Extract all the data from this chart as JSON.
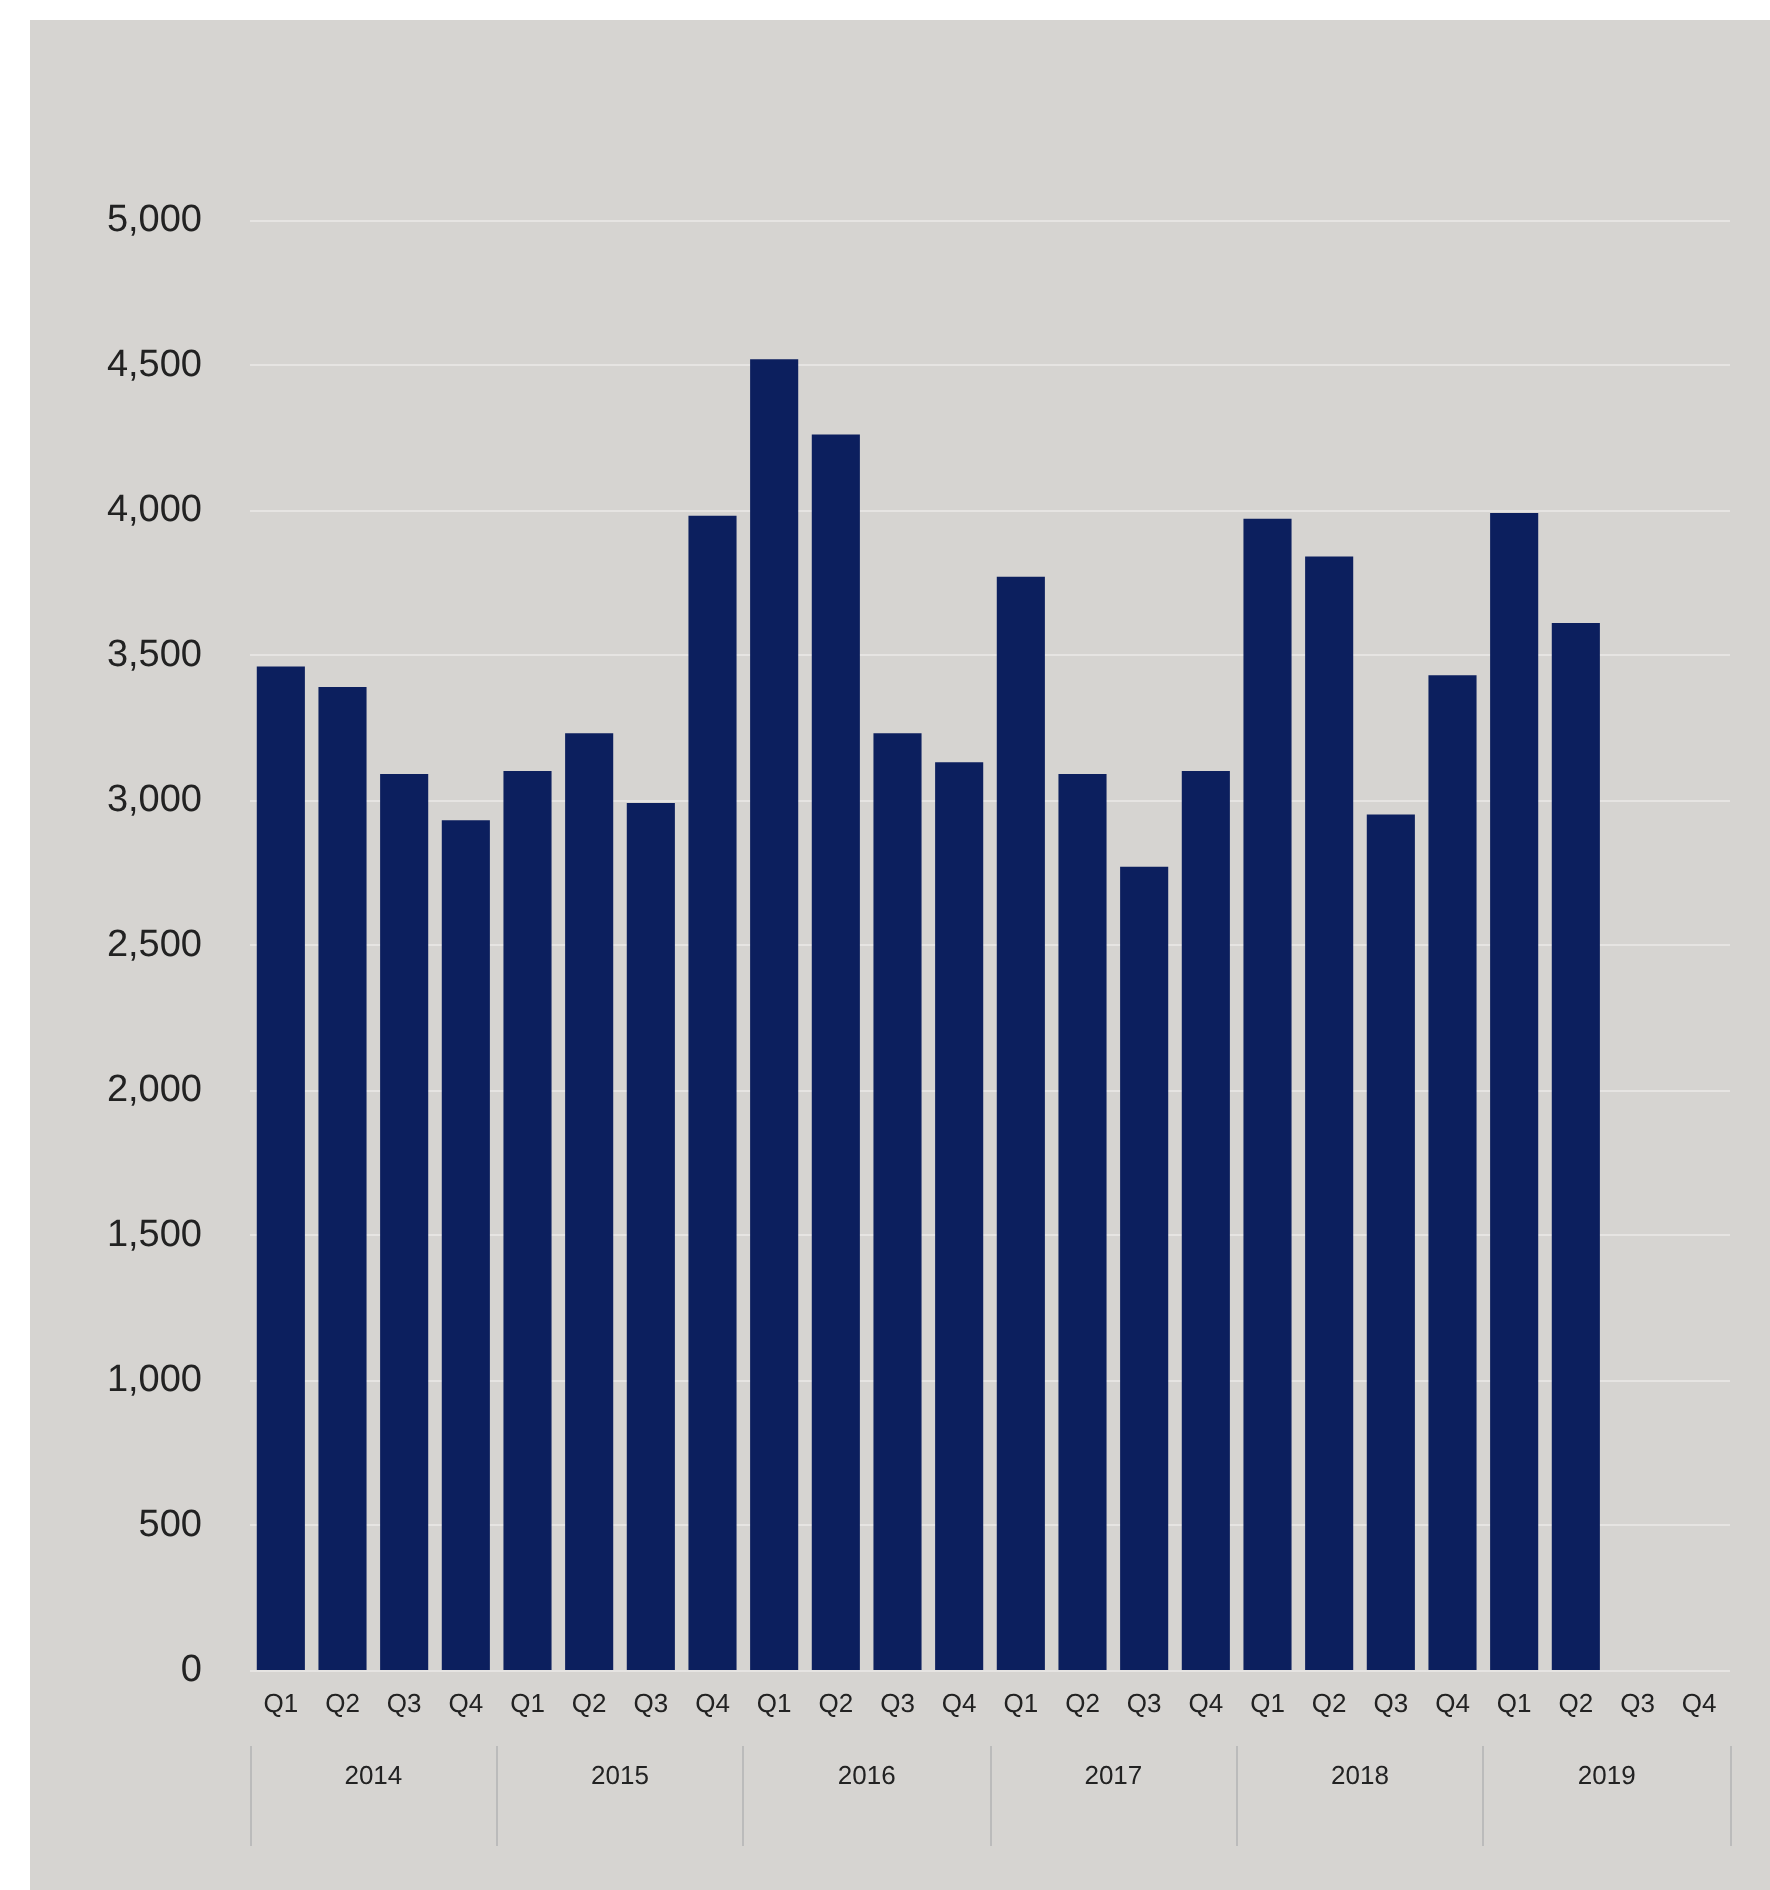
{
  "chart_data": {
    "type": "bar",
    "categories": [
      "Q1",
      "Q2",
      "Q3",
      "Q4",
      "Q1",
      "Q2",
      "Q3",
      "Q4",
      "Q1",
      "Q2",
      "Q3",
      "Q4",
      "Q1",
      "Q2",
      "Q3",
      "Q4",
      "Q1",
      "Q2",
      "Q3",
      "Q4",
      "Q1",
      "Q2",
      "Q3",
      "Q4"
    ],
    "values": [
      3460,
      3390,
      3090,
      2930,
      3100,
      3230,
      2990,
      3980,
      4520,
      4260,
      3230,
      3130,
      3770,
      3090,
      2770,
      3100,
      3970,
      3840,
      2950,
      3430,
      3990,
      3610,
      null,
      null
    ],
    "color": "#0c1f5e",
    "ylim": [
      0,
      5000
    ],
    "yticks": [
      0,
      500,
      {
        "value": 1000,
        "label": "1,000"
      },
      {
        "value": 1500,
        "label": "1,500"
      },
      {
        "value": 2000,
        "label": "2,000"
      },
      {
        "value": 2500,
        "label": "2,500"
      },
      {
        "value": 3000,
        "label": "3,000"
      },
      {
        "value": 3500,
        "label": "3,500"
      },
      {
        "value": 4000,
        "label": "4,000"
      },
      {
        "value": 4500,
        "label": "4,500"
      },
      {
        "value": 5000,
        "label": "5,000"
      }
    ],
    "grid": "y",
    "annotations": [
      "2014",
      "2015",
      "2016",
      "2017",
      "2018",
      "2019"
    ]
  }
}
